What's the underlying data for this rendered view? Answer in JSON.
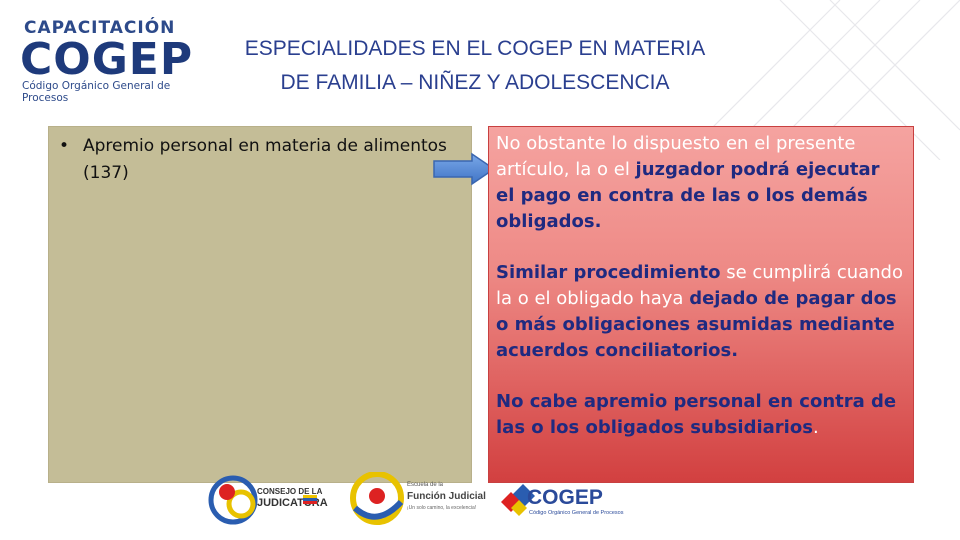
{
  "logo": {
    "top": "CAPACITACIÓN",
    "brand": "COGEP",
    "subtitle": "Código Orgánico General de Procesos"
  },
  "title": {
    "line1": "ESPECIALIDADES EN EL COGEP EN MATERIA",
    "line2": "DE FAMILIA – NIÑEZ Y ADOLESCENCIA"
  },
  "left": {
    "bullet": "Apremio personal en materia de alimentos (137)"
  },
  "right": {
    "p1": {
      "a": "No obstante lo dispuesto en el presente artículo, la o el ",
      "b": "juzgador podrá ejecutar el pago en contra de las o los demás obligados."
    },
    "p2": {
      "a": "Similar procedimiento",
      "b": " se cumplirá cuando la o el obligado haya ",
      "c": "dejado de pagar dos o más obligaciones asumidas mediante acuerdos conciliatorios."
    },
    "p3": {
      "a": "No cabe apremio personal en contra de las o los obligados subsidiarios",
      "b": "."
    }
  },
  "footer": {
    "logo1_line1": "CONSEJO DE LA",
    "logo1_line2": "JUDICATURA",
    "logo2_line1": "Escuela de la",
    "logo2_line2": "Función Judicial",
    "logo2_line3": "¡Un solo camino, la excelencia!",
    "logo3_brand": "COGEP",
    "logo3_sub": "Código Orgánico General de Procesos"
  },
  "colors": {
    "title": "#2a3f8f",
    "left_panel": "#c4bd97",
    "right_panel_top": "#f5a3a0",
    "right_panel_bottom": "#d24040",
    "arrow": "#5b8fd6",
    "text_blue": "#1f2a80"
  }
}
